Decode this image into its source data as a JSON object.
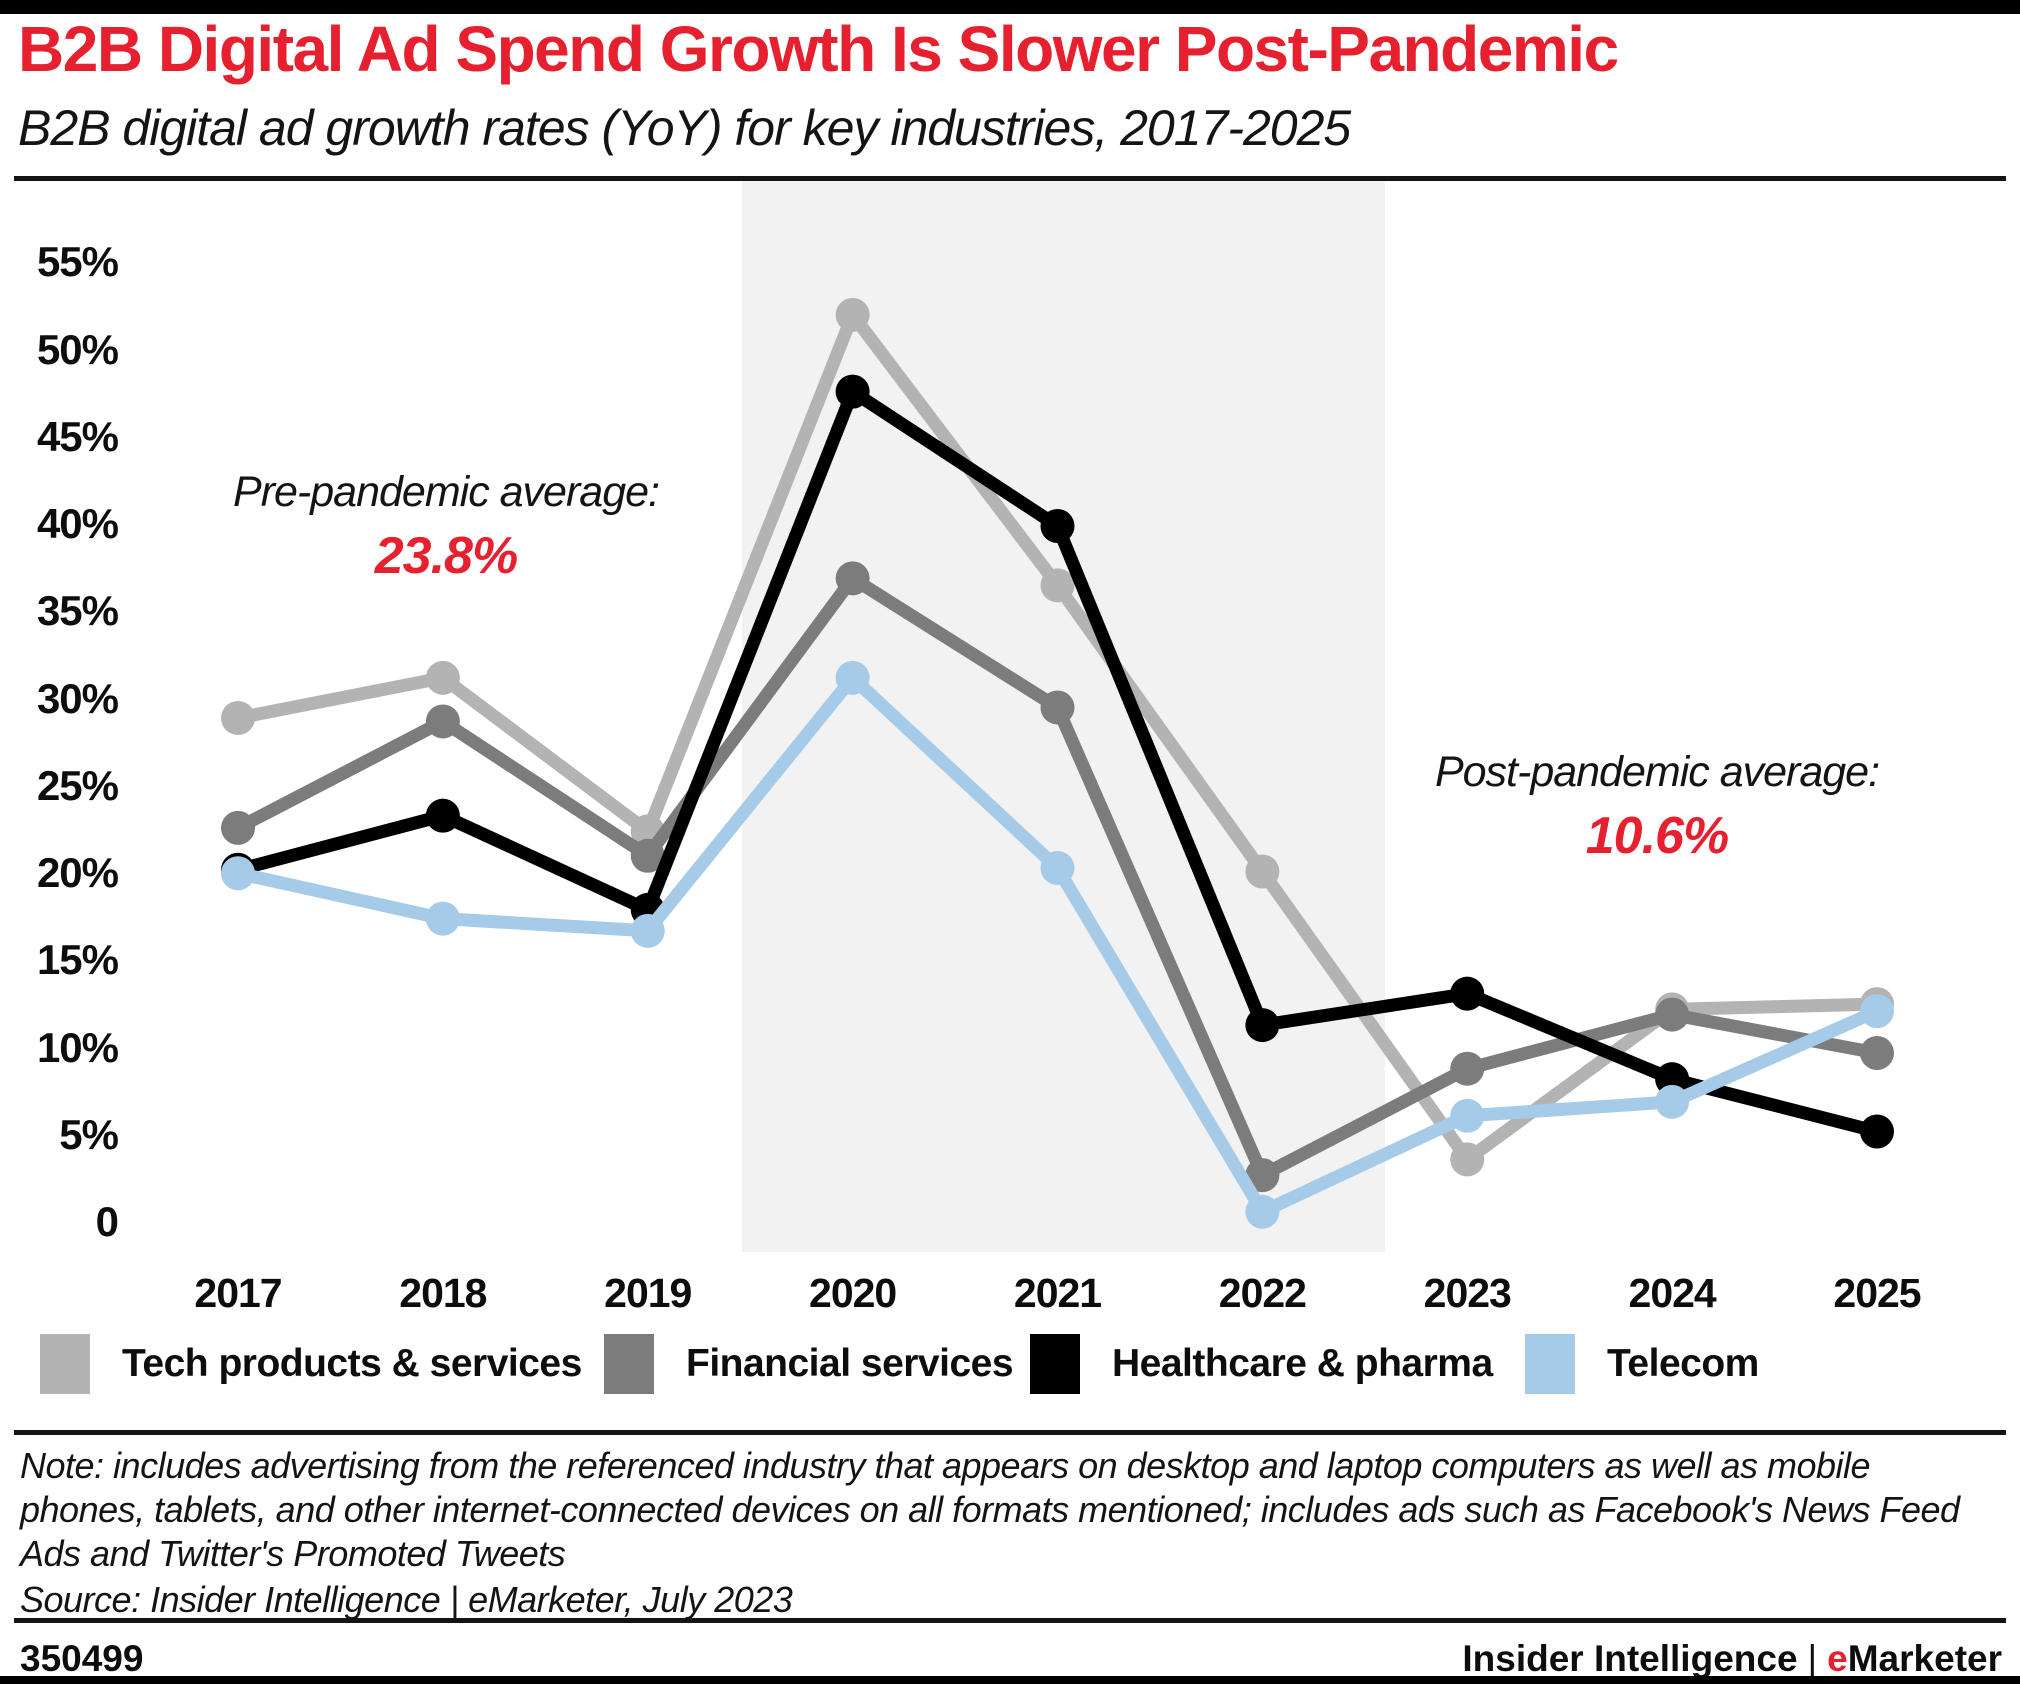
{
  "header": {
    "title": "B2B Digital Ad Spend Growth Is Slower Post-Pandemic",
    "subtitle": "B2B digital ad growth rates (YoY) for key industries, 2017-2025"
  },
  "colors": {
    "accent_red": "#E6202E",
    "pandemic_band": "#f2f2f2",
    "tech": "#b3b3b3",
    "financial": "#7c7c7c",
    "healthcare": "#000000",
    "telecom": "#a5cbe9"
  },
  "chart_data": {
    "type": "line",
    "title": "B2B Digital Ad Spend Growth Is Slower Post-Pandemic",
    "subtitle": "B2B digital ad growth rates (YoY) for key industries, 2017-2025",
    "categories": [
      "2017",
      "2018",
      "2019",
      "2020",
      "2021",
      "2022",
      "2023",
      "2024",
      "2025"
    ],
    "series": [
      {
        "name": "Tech products & services",
        "color": "#b3b3b3",
        "values": [
          29.0,
          31.3,
          22.5,
          52.1,
          36.6,
          20.2,
          3.7,
          12.3,
          12.6
        ]
      },
      {
        "name": "Financial services",
        "color": "#7c7c7c",
        "values": [
          22.7,
          28.8,
          21.1,
          37.0,
          29.6,
          2.8,
          8.9,
          12.0,
          9.8
        ]
      },
      {
        "name": "Healthcare & pharma",
        "color": "#000000",
        "values": [
          20.3,
          23.4,
          18.0,
          47.7,
          40.0,
          11.4,
          13.2,
          8.3,
          5.3
        ]
      },
      {
        "name": "Telecom",
        "color": "#a5cbe9",
        "values": [
          20.1,
          17.5,
          16.8,
          31.3,
          20.4,
          0.7,
          6.2,
          7.0,
          12.2
        ]
      }
    ],
    "y_axis": {
      "range": [
        0,
        57
      ],
      "unit": "%",
      "ticks": [
        {
          "label": "55%",
          "value": 55
        },
        {
          "label": "50%",
          "value": 50
        },
        {
          "label": "45%",
          "value": 45
        },
        {
          "label": "40%",
          "value": 40
        },
        {
          "label": "35%",
          "value": 35
        },
        {
          "label": "30%",
          "value": 30
        },
        {
          "label": "25%",
          "value": 25
        },
        {
          "label": "20%",
          "value": 20
        },
        {
          "label": "15%",
          "value": 15
        },
        {
          "label": "10%",
          "value": 10
        },
        {
          "label": "5%",
          "value": 5
        },
        {
          "label": "0",
          "value": 0
        }
      ]
    },
    "grid": false,
    "legend_position": "bottom",
    "pandemic_band": {
      "from_category": "2020",
      "to_category": "2022"
    },
    "annotations": [
      {
        "text": "Pre-pandemic average:",
        "value_text": "23.8%"
      },
      {
        "text": "Post-pandemic average:",
        "value_text": "10.6%"
      }
    ]
  },
  "annotations": {
    "pre": {
      "label": "Pre-pandemic average:",
      "value": "23.8%"
    },
    "post": {
      "label": "Post-pandemic average:",
      "value": "10.6%"
    }
  },
  "footer": {
    "note": "Note: includes advertising from the referenced industry that appears on desktop and laptop computers as well as mobile phones, tablets, and other internet-connected devices on all formats mentioned; includes ads such as Facebook's News Feed Ads and Twitter's Promoted Tweets",
    "source": "Source: Insider Intelligence | eMarketer, July 2023",
    "chart_id": "350499",
    "branding": {
      "company": "Insider Intelligence",
      "separator": "|",
      "product_first_letter": "e",
      "product_rest": "Marketer"
    }
  }
}
